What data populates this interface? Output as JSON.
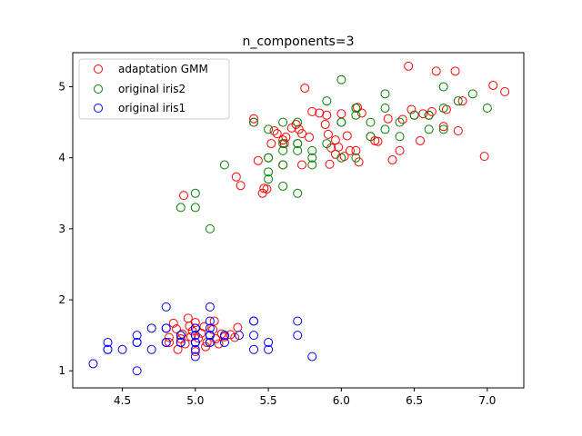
{
  "chart_data": {
    "type": "scatter",
    "title": "n_components=3",
    "xlabel": "",
    "ylabel": "",
    "xlim": [
      4.16,
      7.25
    ],
    "ylim": [
      0.76,
      5.48
    ],
    "xticks": [
      4.5,
      5.0,
      5.5,
      6.0,
      6.5,
      7.0
    ],
    "xtick_labels": [
      "4.5",
      "5.0",
      "5.5",
      "6.0",
      "6.5",
      "7.0"
    ],
    "yticks": [
      1,
      2,
      3,
      4,
      5
    ],
    "ytick_labels": [
      "1",
      "2",
      "3",
      "4",
      "5"
    ],
    "grid": false,
    "legend_position": "top-left",
    "series": [
      {
        "name": "adaptation GMM",
        "color": "#ff0000",
        "marker": "open-circle",
        "points": [
          [
            4.82,
            1.47
          ],
          [
            4.85,
            1.67
          ],
          [
            4.87,
            1.59
          ],
          [
            4.88,
            1.3
          ],
          [
            4.9,
            1.45
          ],
          [
            4.91,
            1.52
          ],
          [
            4.93,
            1.38
          ],
          [
            4.95,
            1.74
          ],
          [
            4.97,
            1.48
          ],
          [
            4.98,
            1.56
          ],
          [
            5.0,
            1.27
          ],
          [
            5.0,
            1.4
          ],
          [
            5.0,
            1.68
          ],
          [
            5.02,
            1.46
          ],
          [
            5.04,
            1.53
          ],
          [
            5.06,
            1.62
          ],
          [
            5.07,
            1.34
          ],
          [
            5.08,
            1.4
          ],
          [
            5.1,
            1.5
          ],
          [
            5.12,
            1.58
          ],
          [
            5.14,
            1.45
          ],
          [
            5.16,
            1.38
          ],
          [
            5.18,
            1.52
          ],
          [
            5.2,
            1.48
          ],
          [
            5.24,
            1.51
          ],
          [
            5.27,
            1.47
          ],
          [
            5.29,
            1.61
          ],
          [
            4.82,
            1.4
          ],
          [
            4.96,
            1.63
          ],
          [
            5.13,
            1.7
          ],
          [
            4.92,
            3.47
          ],
          [
            5.28,
            3.73
          ],
          [
            5.31,
            3.61
          ],
          [
            5.46,
            3.5
          ],
          [
            5.47,
            3.57
          ],
          [
            5.49,
            3.56
          ],
          [
            5.43,
            3.96
          ],
          [
            5.4,
            4.55
          ],
          [
            5.4,
            4.5
          ],
          [
            5.52,
            4.2
          ],
          [
            5.54,
            4.38
          ],
          [
            5.56,
            4.34
          ],
          [
            5.6,
            4.25
          ],
          [
            5.61,
            4.2
          ],
          [
            5.62,
            4.29
          ],
          [
            5.6,
            3.9
          ],
          [
            5.66,
            4.42
          ],
          [
            5.69,
            4.47
          ],
          [
            5.71,
            4.4
          ],
          [
            5.73,
            4.34
          ],
          [
            5.75,
            4.98
          ],
          [
            5.78,
            4.29
          ],
          [
            5.73,
            3.9
          ],
          [
            5.8,
            4.65
          ],
          [
            5.85,
            4.63
          ],
          [
            5.89,
            4.47
          ],
          [
            5.9,
            4.6
          ],
          [
            5.91,
            4.33
          ],
          [
            5.93,
            4.14
          ],
          [
            5.96,
            4.25
          ],
          [
            5.96,
            4.05
          ],
          [
            5.92,
            3.91
          ],
          [
            5.98,
            4.15
          ],
          [
            6.0,
            4.62
          ],
          [
            6.02,
            4.02
          ],
          [
            6.04,
            4.31
          ],
          [
            6.06,
            4.1
          ],
          [
            6.1,
            4.1
          ],
          [
            6.11,
            4.71
          ],
          [
            6.12,
            3.94
          ],
          [
            6.14,
            4.63
          ],
          [
            6.2,
            4.3
          ],
          [
            6.23,
            4.24
          ],
          [
            6.25,
            4.23
          ],
          [
            6.32,
            4.55
          ],
          [
            6.35,
            3.97
          ],
          [
            6.4,
            4.1
          ],
          [
            6.42,
            4.54
          ],
          [
            6.46,
            5.29
          ],
          [
            6.48,
            4.68
          ],
          [
            6.5,
            4.6
          ],
          [
            6.54,
            4.24
          ],
          [
            6.56,
            4.62
          ],
          [
            6.6,
            4.6
          ],
          [
            6.62,
            4.65
          ],
          [
            6.65,
            5.22
          ],
          [
            6.7,
            4.44
          ],
          [
            6.72,
            4.68
          ],
          [
            6.78,
            5.22
          ],
          [
            6.8,
            4.38
          ],
          [
            6.83,
            4.8
          ],
          [
            6.98,
            4.02
          ],
          [
            7.04,
            5.02
          ],
          [
            7.12,
            4.93
          ]
        ]
      },
      {
        "name": "original iris2",
        "color": "#008000",
        "marker": "open-circle",
        "points": [
          [
            4.9,
            3.3
          ],
          [
            5.0,
            3.3
          ],
          [
            5.0,
            3.5
          ],
          [
            5.1,
            3.0
          ],
          [
            5.2,
            3.9
          ],
          [
            5.4,
            4.5
          ],
          [
            5.5,
            4.0
          ],
          [
            5.5,
            4.0
          ],
          [
            5.5,
            3.7
          ],
          [
            5.5,
            3.8
          ],
          [
            5.5,
            4.4
          ],
          [
            5.6,
            4.5
          ],
          [
            5.6,
            4.2
          ],
          [
            5.6,
            4.1
          ],
          [
            5.6,
            3.9
          ],
          [
            5.6,
            3.6
          ],
          [
            5.7,
            4.5
          ],
          [
            5.7,
            4.2
          ],
          [
            5.7,
            4.2
          ],
          [
            5.7,
            4.1
          ],
          [
            5.7,
            3.5
          ],
          [
            5.8,
            4.1
          ],
          [
            5.8,
            4.0
          ],
          [
            5.8,
            3.9
          ],
          [
            5.9,
            4.8
          ],
          [
            5.9,
            4.2
          ],
          [
            6.0,
            4.5
          ],
          [
            6.0,
            4.5
          ],
          [
            6.0,
            4.0
          ],
          [
            6.0,
            5.1
          ],
          [
            6.1,
            4.7
          ],
          [
            6.1,
            4.7
          ],
          [
            6.1,
            4.6
          ],
          [
            6.1,
            4.0
          ],
          [
            6.2,
            4.5
          ],
          [
            6.2,
            4.3
          ],
          [
            6.3,
            4.9
          ],
          [
            6.3,
            4.7
          ],
          [
            6.3,
            4.4
          ],
          [
            6.4,
            4.5
          ],
          [
            6.4,
            4.3
          ],
          [
            6.5,
            4.6
          ],
          [
            6.6,
            4.6
          ],
          [
            6.6,
            4.4
          ],
          [
            6.7,
            4.7
          ],
          [
            6.7,
            4.4
          ],
          [
            6.7,
            5.0
          ],
          [
            6.8,
            4.8
          ],
          [
            6.9,
            4.9
          ],
          [
            7.0,
            4.7
          ]
        ]
      },
      {
        "name": "original iris1",
        "color": "#0000ff",
        "marker": "open-circle",
        "points": [
          [
            4.3,
            1.1
          ],
          [
            4.4,
            1.4
          ],
          [
            4.4,
            1.3
          ],
          [
            4.4,
            1.3
          ],
          [
            4.5,
            1.3
          ],
          [
            4.6,
            1.4
          ],
          [
            4.6,
            1.0
          ],
          [
            4.6,
            1.4
          ],
          [
            4.6,
            1.5
          ],
          [
            4.7,
            1.3
          ],
          [
            4.7,
            1.6
          ],
          [
            4.8,
            1.4
          ],
          [
            4.8,
            1.6
          ],
          [
            4.8,
            1.4
          ],
          [
            4.8,
            1.9
          ],
          [
            4.8,
            1.6
          ],
          [
            4.9,
            1.4
          ],
          [
            4.9,
            1.5
          ],
          [
            4.9,
            1.5
          ],
          [
            4.9,
            1.4
          ],
          [
            5.0,
            1.4
          ],
          [
            5.0,
            1.5
          ],
          [
            5.0,
            1.2
          ],
          [
            5.0,
            1.3
          ],
          [
            5.0,
            1.6
          ],
          [
            5.0,
            1.6
          ],
          [
            5.0,
            1.4
          ],
          [
            5.0,
            1.5
          ],
          [
            5.1,
            1.4
          ],
          [
            5.1,
            1.5
          ],
          [
            5.1,
            1.5
          ],
          [
            5.1,
            1.7
          ],
          [
            5.1,
            1.5
          ],
          [
            5.1,
            1.9
          ],
          [
            5.1,
            1.6
          ],
          [
            5.1,
            1.4
          ],
          [
            5.2,
            1.5
          ],
          [
            5.2,
            1.4
          ],
          [
            5.2,
            1.5
          ],
          [
            5.3,
            1.5
          ],
          [
            5.4,
            1.3
          ],
          [
            5.4,
            1.5
          ],
          [
            5.4,
            1.7
          ],
          [
            5.4,
            1.7
          ],
          [
            5.5,
            1.4
          ],
          [
            5.5,
            1.3
          ],
          [
            5.7,
            1.5
          ],
          [
            5.7,
            1.7
          ],
          [
            5.8,
            1.2
          ],
          [
            5.0,
            1.4
          ]
        ]
      }
    ]
  }
}
